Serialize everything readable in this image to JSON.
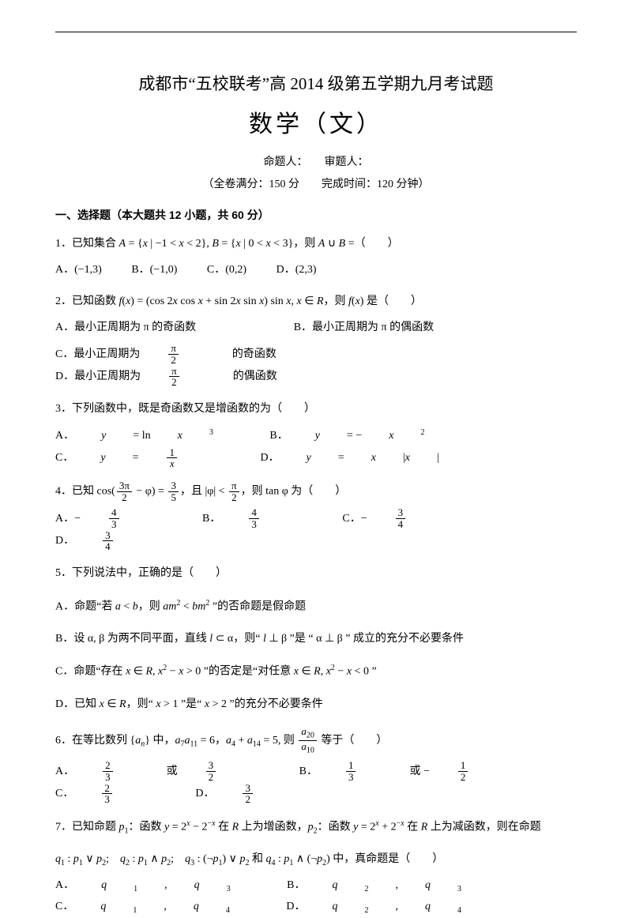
{
  "title_main": "成都市“五校联考”高 2014 级第五学期九月考试题",
  "title_sub": "数学（文）",
  "meta1": "命题人：　　审题人：",
  "meta2": "（全卷满分：150 分　　完成时间：120 分钟）",
  "section1": "一、选择题（本大题共 12 小题，共 60 分）",
  "q1_pre": "1．已知集合 ",
  "q1_mid": " = {",
  "q1_set1": " | −1 < ",
  "q1_set2": " < 2}, ",
  "q1_set3": " = {",
  "q1_set4": " | 0 < ",
  "q1_set5": " < 3}，则 ",
  "q1_tail": " =（　　）",
  "q1_A": "A．(−1,3)",
  "q1_B": "B．(−1,0)",
  "q1_C": "C．(0,2)",
  "q1_D": "D．(2,3)",
  "q2_pre": "2．已知函数 ",
  "q2_fx": "(",
  "q2_body": ") = (cos 2",
  "q2_b2": " cos ",
  "q2_b3": " + sin 2",
  "q2_b4": " sin ",
  "q2_b5": ") sin ",
  "q2_b6": ", ",
  "q2_in": " ∈ ",
  "q2_tail": "，则 ",
  "q2_tail2": "(",
  "q2_tail3": ") 是（　　）",
  "q2_A": "A．最小正周期为 π 的奇函数",
  "q2_B": "B．最小正周期为 π 的偶函数",
  "q2_C_pre": "C．最小正周期为 ",
  "q2_C_post": " 的奇函数",
  "q2_D_pre": "D．最小正周期为 ",
  "q2_D_post": " 的偶函数",
  "q3": "3．下列函数中，既是奇函数又是增函数的为（　　）",
  "q3_A_pre": "A．",
  "q3_A_body": " = ln ",
  "q3_B_pre": "B．",
  "q3_B_body": " = −",
  "q3_C_pre": "C．",
  "q3_C_body": " = ",
  "q3_D_pre": "D．",
  "q3_D_body": " = ",
  "q4_pre": "4．已知 cos(",
  "q4_mid": " − φ) = ",
  "q4_mid2": "，且 |φ| < ",
  "q4_tail": "，则 tan φ 为（　　）",
  "q4_A": "A．−",
  "q4_B": "B．",
  "q4_C": "C．−",
  "q4_D": "D．",
  "q5": "5．下列说法中，正确的是（　　）",
  "q5_A_pre": "A．命题“若 ",
  "q5_A_mid": " < ",
  "q5_A_mid2": "，则 ",
  "q5_A_mid3": " < ",
  "q5_A_tail": " ”的否命题是假命题",
  "q5_B_pre": "B．设 α, β 为两不同平面，直线 ",
  "q5_B_mid": " ⊂ α，则“ ",
  "q5_B_mid2": " ⊥ β ”是 “ α ⊥ β ” 成立的充分不必要条件",
  "q5_C_pre": "C．命题“存在 ",
  "q5_C_mid": " ∈ ",
  "q5_C_mid2": ", ",
  "q5_C_mid3": " − ",
  "q5_C_mid4": " > 0 ”的否定是“对任意 ",
  "q5_C_mid5": " ∈ ",
  "q5_C_mid6": ", ",
  "q5_C_mid7": " − ",
  "q5_C_mid8": " < 0 ”",
  "q5_D_pre": "D．已知 ",
  "q5_D_mid": " ∈ ",
  "q5_D_mid2": "，则“ ",
  "q5_D_mid3": " > 1 ”是“ ",
  "q5_D_mid4": " > 2 ”的充分不必要条件",
  "q6_pre": "6．在等比数列 {",
  "q6_mid": "} 中，",
  "q6_mid2": " = 6，",
  "q6_mid3": " + ",
  "q6_mid4": " = 5, 则 ",
  "q6_tail": " 等于（　　）",
  "q6_A_pre": "A．",
  "q6_or": " 或 ",
  "q6_B_pre": "B．",
  "q6_or2": " 或 −",
  "q6_C_pre": "C．",
  "q6_D_pre": "D．",
  "q7_pre": "7．已知命题 ",
  "q7_p1": "：函数 ",
  "q7_p1b": " = 2",
  "q7_p1c": " − 2",
  "q7_p1d": " 在 ",
  "q7_p1e": " 上为增函数，",
  "q7_p2": "：函数 ",
  "q7_p2b": " = 2",
  "q7_p2c": " + 2",
  "q7_p2d": " 在 ",
  "q7_p2e": " 上为减函数，则在命题",
  "q7_line2_pre": "",
  "q7_q1": " : ",
  "q7_or_q": " ∨ ",
  "q7_semi": ";　",
  "q7_and": " ∧ ",
  "q7_neg_pre": " : (¬",
  "q7_neg_post": ") ∨ ",
  "q7_and2": " 和 ",
  "q7_neg2_pre": " ∧ (¬",
  "q7_neg2_post": ") 中，真命题是（　　）",
  "q7_A_pre": "A．",
  "q7_comma": ", ",
  "q7_B_pre": "B．",
  "q7_C_pre": "C．",
  "q7_D_pre": "D．",
  "sym": {
    "A": "A",
    "B": "B",
    "R": "R",
    "x": "x",
    "y": "y",
    "f": "f",
    "a": "a",
    "b": "b",
    "l": "l",
    "m": "m",
    "n": "n",
    "union": " ∪ ",
    "pi": "π",
    "two": "2",
    "three": "3",
    "four": "4",
    "five": "5",
    "one": "1",
    "neg": "−",
    "p": "p",
    "q": "q",
    "sub7": "7",
    "sub11": "11",
    "sub4": "4",
    "sub14": "14",
    "sub20": "20",
    "sub10": "10",
    "sub1": "1",
    "sub2": "2",
    "sub3": "3",
    "subn": "n"
  }
}
